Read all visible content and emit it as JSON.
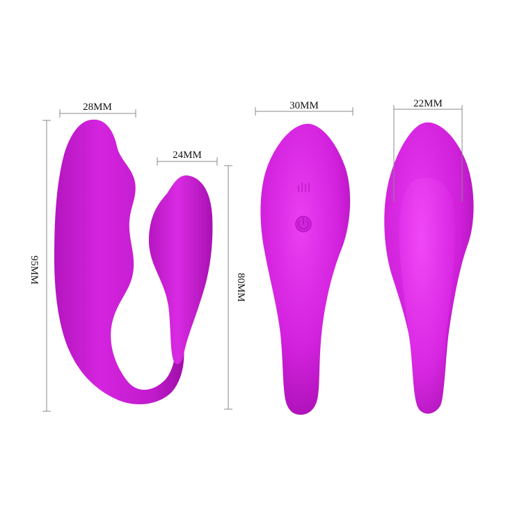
{
  "dimensions": {
    "side_width_large": "28MM",
    "side_width_small": "24MM",
    "side_height": "95MM",
    "inner_height": "80MM",
    "front_width": "30MM",
    "back_width": "22MM"
  },
  "colors": {
    "body": "#d726e0",
    "body_light": "#ee4df7",
    "body_dark": "#a20fab",
    "dim_line": "#888888"
  },
  "icons": [
    "vibration-mode-icon",
    "power-icon"
  ]
}
